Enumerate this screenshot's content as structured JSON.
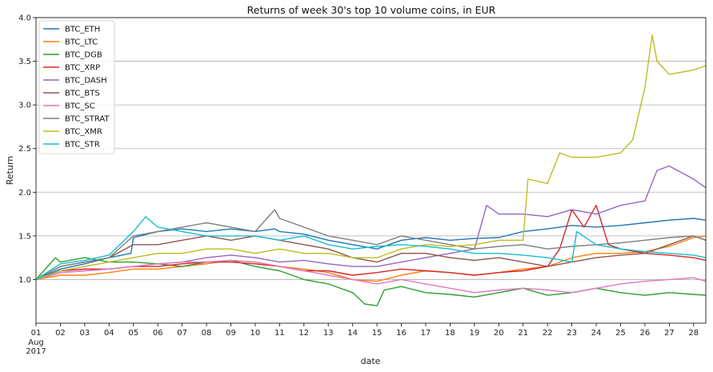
{
  "chart_data": {
    "type": "line",
    "title": "Returns of week 30's top 10 volume coins, in EUR",
    "xlabel": "date",
    "ylabel": "Return",
    "ylim": [
      0.5,
      4.0
    ],
    "yticks": [
      "1.0",
      "1.5",
      "2.0",
      "2.5",
      "3.0",
      "3.5",
      "4.0"
    ],
    "xlim": [
      1,
      28.5
    ],
    "xticks": [
      "01",
      "02",
      "03",
      "04",
      "05",
      "06",
      "07",
      "08",
      "09",
      "10",
      "11",
      "12",
      "13",
      "14",
      "15",
      "16",
      "17",
      "18",
      "19",
      "20",
      "21",
      "22",
      "23",
      "24",
      "25",
      "26",
      "27",
      "28"
    ],
    "xtick_sub": [
      "Aug",
      "2017"
    ],
    "grid": "horizontal",
    "legend_position": "top-left",
    "series": [
      {
        "name": "BTC_ETH",
        "color": "#1f77b4",
        "x": [
          1,
          2,
          3,
          4,
          4.9,
          5,
          6,
          7,
          8,
          9,
          10,
          10.8,
          11,
          12,
          13,
          14,
          15,
          16,
          17,
          18,
          19,
          20,
          21,
          22,
          23,
          24,
          25,
          26,
          27,
          28,
          28.5
        ],
        "y": [
          1.0,
          1.12,
          1.18,
          1.25,
          1.3,
          1.48,
          1.55,
          1.58,
          1.55,
          1.58,
          1.55,
          1.58,
          1.55,
          1.52,
          1.45,
          1.4,
          1.35,
          1.45,
          1.48,
          1.45,
          1.47,
          1.48,
          1.55,
          1.58,
          1.62,
          1.6,
          1.62,
          1.65,
          1.68,
          1.7,
          1.68
        ]
      },
      {
        "name": "BTC_LTC",
        "color": "#ff7f0e",
        "x": [
          1,
          2,
          3,
          4,
          5,
          6,
          7,
          8,
          9,
          10,
          11,
          12,
          13,
          14,
          15,
          16,
          17,
          18,
          19,
          20,
          21,
          22,
          23,
          24,
          25,
          26,
          27,
          28,
          28.5
        ],
        "y": [
          1.0,
          1.05,
          1.05,
          1.08,
          1.12,
          1.12,
          1.15,
          1.18,
          1.22,
          1.2,
          1.15,
          1.12,
          1.08,
          1.0,
          0.98,
          1.05,
          1.1,
          1.08,
          1.05,
          1.08,
          1.12,
          1.15,
          1.25,
          1.3,
          1.3,
          1.32,
          1.38,
          1.48,
          1.5
        ]
      },
      {
        "name": "BTC_DGB",
        "color": "#2ca02c",
        "x": [
          1,
          1.8,
          2,
          3,
          4,
          5,
          6,
          7,
          8,
          9,
          10,
          11,
          12,
          13,
          14,
          14.5,
          15,
          15.3,
          16,
          17,
          18,
          19,
          20,
          21,
          22,
          23,
          24,
          25,
          26,
          27,
          28,
          28.5
        ],
        "y": [
          1.0,
          1.25,
          1.2,
          1.25,
          1.2,
          1.2,
          1.18,
          1.15,
          1.2,
          1.22,
          1.15,
          1.1,
          1.0,
          0.95,
          0.85,
          0.72,
          0.7,
          0.88,
          0.92,
          0.85,
          0.83,
          0.8,
          0.85,
          0.9,
          0.82,
          0.85,
          0.9,
          0.85,
          0.82,
          0.85,
          0.83,
          0.82
        ]
      },
      {
        "name": "BTC_XRP",
        "color": "#d62728",
        "x": [
          1,
          2,
          3,
          4,
          5,
          6,
          7,
          8,
          9,
          10,
          11,
          12,
          13,
          14,
          15,
          16,
          17,
          18,
          19,
          20,
          21,
          22,
          22.5,
          23,
          23.5,
          24,
          24.5,
          25,
          26,
          27,
          28,
          28.5
        ],
        "y": [
          1.0,
          1.1,
          1.12,
          1.12,
          1.15,
          1.15,
          1.18,
          1.2,
          1.2,
          1.18,
          1.15,
          1.1,
          1.1,
          1.05,
          1.08,
          1.12,
          1.1,
          1.08,
          1.05,
          1.08,
          1.1,
          1.15,
          1.35,
          1.8,
          1.6,
          1.85,
          1.4,
          1.35,
          1.3,
          1.28,
          1.25,
          1.22
        ]
      },
      {
        "name": "BTC_DASH",
        "color": "#9467bd",
        "x": [
          1,
          2,
          3,
          4,
          5,
          6,
          7,
          8,
          9,
          10,
          11,
          12,
          13,
          14,
          15,
          16,
          17,
          18,
          19,
          19.5,
          20,
          21,
          22,
          23,
          24,
          25,
          26,
          26.5,
          27,
          28,
          28.5
        ],
        "y": [
          1.0,
          1.08,
          1.1,
          1.12,
          1.15,
          1.18,
          1.2,
          1.25,
          1.28,
          1.25,
          1.2,
          1.22,
          1.18,
          1.15,
          1.15,
          1.2,
          1.25,
          1.3,
          1.35,
          1.85,
          1.75,
          1.75,
          1.72,
          1.8,
          1.75,
          1.85,
          1.9,
          2.25,
          2.3,
          2.15,
          2.05
        ]
      },
      {
        "name": "BTC_BTS",
        "color": "#8c564b",
        "x": [
          1,
          2,
          3,
          4,
          5,
          6,
          7,
          8,
          9,
          10,
          11,
          12,
          13,
          14,
          15,
          16,
          17,
          18,
          19,
          20,
          21,
          22,
          23,
          24,
          25,
          26,
          27,
          28,
          28.5
        ],
        "y": [
          1.0,
          1.15,
          1.2,
          1.25,
          1.4,
          1.4,
          1.45,
          1.5,
          1.45,
          1.5,
          1.45,
          1.4,
          1.35,
          1.25,
          1.2,
          1.3,
          1.3,
          1.25,
          1.22,
          1.25,
          1.2,
          1.15,
          1.2,
          1.25,
          1.28,
          1.3,
          1.4,
          1.5,
          1.45
        ]
      },
      {
        "name": "BTC_SC",
        "color": "#e377c2",
        "x": [
          1,
          2,
          3,
          4,
          5,
          6,
          7,
          8,
          9,
          10,
          11,
          12,
          13,
          14,
          15,
          16,
          17,
          18,
          19,
          20,
          21,
          22,
          23,
          24,
          25,
          26,
          27,
          28,
          28.5
        ],
        "y": [
          1.0,
          1.08,
          1.1,
          1.12,
          1.15,
          1.18,
          1.2,
          1.2,
          1.22,
          1.2,
          1.15,
          1.1,
          1.05,
          1.0,
          0.95,
          1.0,
          0.95,
          0.9,
          0.85,
          0.88,
          0.9,
          0.88,
          0.85,
          0.9,
          0.95,
          0.98,
          1.0,
          1.02,
          0.98
        ]
      },
      {
        "name": "BTC_STRAT",
        "color": "#7f7f7f",
        "x": [
          1,
          2,
          3,
          4,
          5,
          6,
          7,
          8,
          9,
          10,
          10.8,
          11,
          12,
          13,
          14,
          15,
          16,
          17,
          18,
          19,
          20,
          21,
          22,
          23,
          24,
          25,
          26,
          27,
          28,
          28.5
        ],
        "y": [
          1.0,
          1.15,
          1.2,
          1.25,
          1.5,
          1.55,
          1.6,
          1.65,
          1.6,
          1.55,
          1.8,
          1.7,
          1.6,
          1.5,
          1.45,
          1.4,
          1.5,
          1.45,
          1.4,
          1.35,
          1.38,
          1.4,
          1.35,
          1.38,
          1.4,
          1.42,
          1.45,
          1.48,
          1.5,
          1.45
        ]
      },
      {
        "name": "BTC_XMR",
        "color": "#bcbd22",
        "x": [
          1,
          2,
          3,
          4,
          5,
          6,
          7,
          8,
          9,
          10,
          11,
          12,
          13,
          14,
          15,
          16,
          17,
          18,
          19,
          20,
          21,
          21.2,
          22,
          22.5,
          23,
          24,
          25,
          25.5,
          26,
          26.3,
          26.5,
          27,
          28,
          28.5
        ],
        "y": [
          1.0,
          1.1,
          1.15,
          1.2,
          1.25,
          1.3,
          1.3,
          1.35,
          1.35,
          1.3,
          1.35,
          1.3,
          1.3,
          1.25,
          1.25,
          1.35,
          1.4,
          1.38,
          1.4,
          1.45,
          1.45,
          2.15,
          2.1,
          2.45,
          2.4,
          2.4,
          2.45,
          2.6,
          3.2,
          3.8,
          3.5,
          3.35,
          3.4,
          3.45
        ]
      },
      {
        "name": "BTC_STR",
        "color": "#17becf",
        "x": [
          1,
          2,
          3,
          4,
          5,
          5.5,
          6,
          7,
          8,
          9,
          10,
          11,
          12,
          13,
          14,
          15,
          16,
          17,
          18,
          19,
          20,
          21,
          22,
          23,
          23.2,
          24,
          25,
          26,
          27,
          28,
          28.5
        ],
        "y": [
          1.0,
          1.18,
          1.22,
          1.28,
          1.55,
          1.72,
          1.6,
          1.55,
          1.5,
          1.5,
          1.5,
          1.45,
          1.5,
          1.4,
          1.35,
          1.38,
          1.4,
          1.38,
          1.35,
          1.3,
          1.3,
          1.28,
          1.25,
          1.2,
          1.55,
          1.4,
          1.35,
          1.32,
          1.3,
          1.28,
          1.25
        ]
      }
    ]
  }
}
